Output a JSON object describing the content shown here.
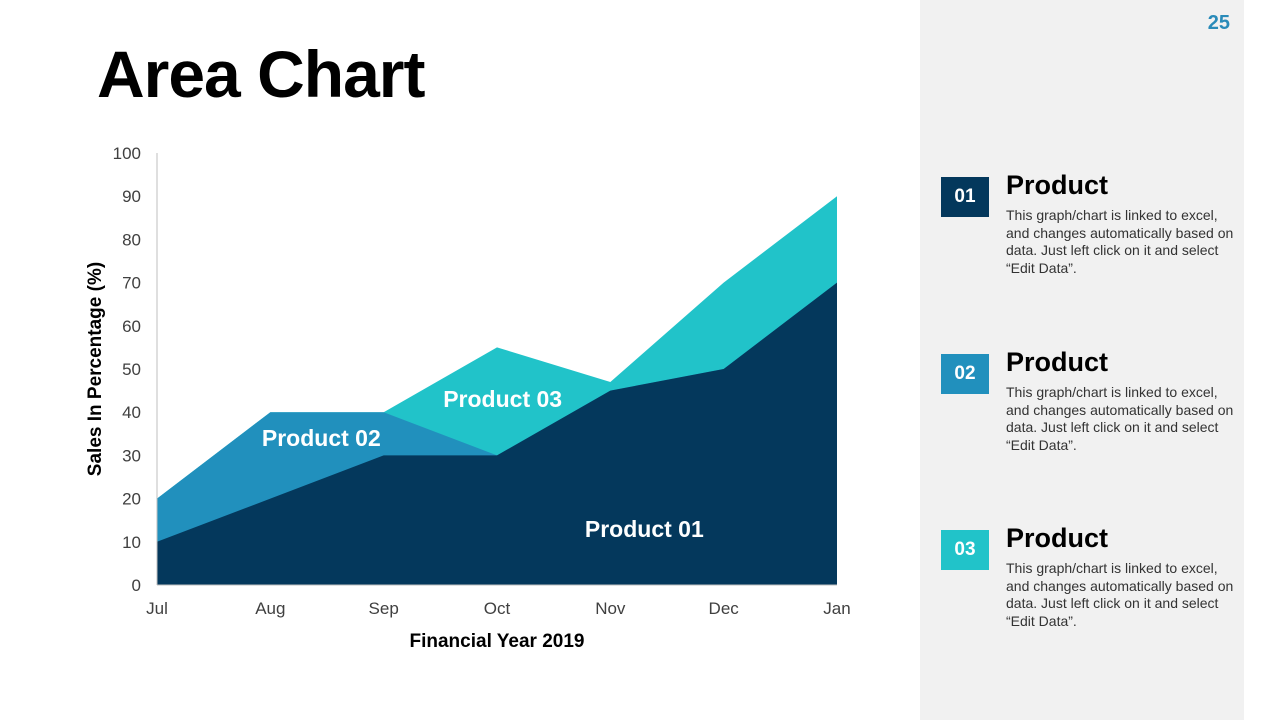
{
  "page": {
    "title": "Area Chart",
    "number": "25"
  },
  "colors": {
    "product01": "#04385c",
    "product02": "#2190bd",
    "product03": "#21c3c9",
    "panel": "#f1f1f1",
    "page_number": "#2a8bb9"
  },
  "chart_data": {
    "type": "area",
    "title": "",
    "xlabel": "Financial Year 2019",
    "ylabel": "Sales In Percentage (%)",
    "ylim": [
      0,
      100
    ],
    "yticks": [
      0,
      10,
      20,
      30,
      40,
      50,
      60,
      70,
      80,
      90,
      100
    ],
    "categories": [
      "Jul",
      "Aug",
      "Sep",
      "Oct",
      "Nov",
      "Dec",
      "Jan"
    ],
    "series": [
      {
        "name": "Product 03",
        "values": [
          20,
          40,
          40,
          55,
          47,
          70,
          90
        ]
      },
      {
        "name": "Product 02",
        "values": [
          20,
          40,
          40,
          30,
          45,
          50,
          70
        ]
      },
      {
        "name": "Product 01",
        "values": [
          10,
          20,
          30,
          30,
          45,
          50,
          70
        ]
      }
    ],
    "annotations": [
      {
        "text": "Product 03",
        "x": 3.05,
        "y": 43
      },
      {
        "text": "Product 02",
        "x": 1.45,
        "y": 34
      },
      {
        "text": "Product 01",
        "x": 4.3,
        "y": 13
      }
    ]
  },
  "legend": [
    {
      "badge": "01",
      "heading": "Product",
      "text": "This graph/chart is linked to excel, and changes automatically based on data. Just left click on it and select “Edit Data”.",
      "color": "#04385c"
    },
    {
      "badge": "02",
      "heading": "Product",
      "text": "This graph/chart is linked to excel, and changes automatically based on data. Just left click on it and select “Edit Data”.",
      "color": "#2190bd"
    },
    {
      "badge": "03",
      "heading": "Product",
      "text": "This graph/chart is linked to excel, and changes automatically based on data. Just left click on it and select “Edit Data”.",
      "color": "#21c3c9"
    }
  ]
}
